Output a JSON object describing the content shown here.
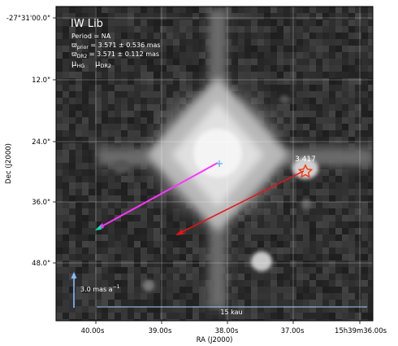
{
  "chart_data": {
    "type": "scatter",
    "title": "IW Lib",
    "xlabel": "RA (J2000)",
    "ylabel": "Dec (J2000)",
    "x_ticks": [
      "40.00s",
      "39.00s",
      "38.00s",
      "37.00s",
      "15h39m36.00s"
    ],
    "y_ticks": [
      "-27°31'00.0\"",
      "12.0\"",
      "24.0\"",
      "36.0\"",
      "48.0\""
    ],
    "grid": true,
    "info_lines": {
      "period": "Period = NA",
      "parallax_prior_symbol": "ϖ",
      "parallax_prior_sub": "prior",
      "parallax_prior_value": " = 3.571 ± 0.536 mas",
      "parallax_dr2_symbol": "ϖ",
      "parallax_dr2_sub": "DR2",
      "parallax_dr2_value": " = 3.571 ± 0.112 mas"
    },
    "legend": {
      "hg_symbol": "μ",
      "hg_sub": "HG",
      "hg_color": "#00e5a0",
      "dr2_symbol": "μ",
      "dr2_sub": "DR2",
      "dr2_color": "#ff33ff"
    },
    "target_marker": {
      "label": "3.417",
      "color": "#ff3300"
    },
    "scale_arrow": {
      "label": "3.0 mas a",
      "exponent": "−1",
      "color": "#88b8ff"
    },
    "scale_bar": {
      "label": "15 kau",
      "color": "#a8d0ff"
    },
    "arrow_colors": {
      "dr2": "#ff33ff",
      "hg": "#00e5a0",
      "red": "#ee1111",
      "cross": "#55aaff"
    }
  }
}
